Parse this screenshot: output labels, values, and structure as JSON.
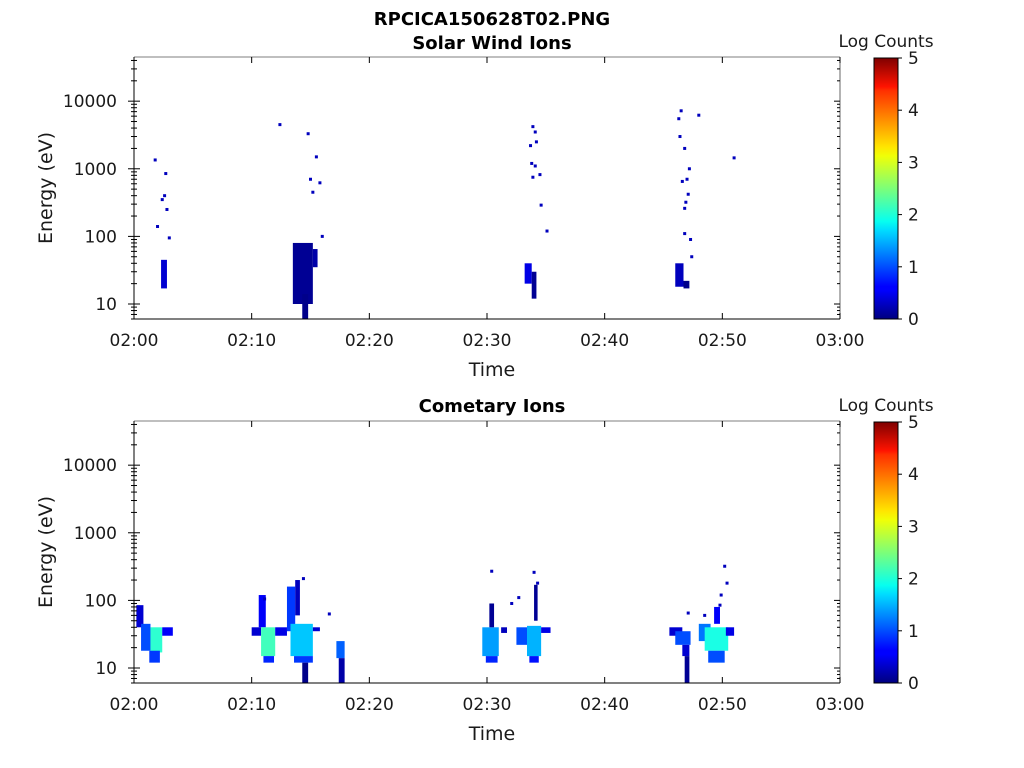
{
  "figure": {
    "title": "RPCICA150628T02.PNG"
  },
  "colors": {
    "colormap": "jet",
    "axis": "#000000",
    "background": "#ffffff"
  },
  "chart_data": [
    {
      "type": "heatmap",
      "title": "Solar Wind Ions",
      "xlabel": "Time",
      "ylabel": "Energy (eV)",
      "yscale": "log",
      "xlim": [
        "02:00",
        "03:00"
      ],
      "ylim": [
        6,
        45000
      ],
      "x_ticks": [
        "02:00",
        "02:10",
        "02:20",
        "02:30",
        "02:40",
        "02:50",
        "03:00"
      ],
      "y_ticks": [
        "10",
        "100",
        "1000",
        "10000"
      ],
      "colorbar": {
        "label": "Log Counts",
        "range": [
          0,
          5
        ],
        "ticks": [
          "0",
          "1",
          "2",
          "3",
          "4",
          "5"
        ]
      },
      "grid": false,
      "blocks": [
        {
          "t": [
            2.3,
            2.8
          ],
          "e": [
            17,
            45
          ],
          "c": 0.4
        },
        {
          "t": [
            13.5,
            15.2
          ],
          "e": [
            10,
            80
          ],
          "c": 0.1
        },
        {
          "t": [
            14.3,
            14.8
          ],
          "e": [
            6,
            14
          ],
          "c": 0.05
        },
        {
          "t": [
            15.2,
            15.6
          ],
          "e": [
            35,
            65
          ],
          "c": 0.2
        },
        {
          "t": [
            33.2,
            33.8
          ],
          "e": [
            20,
            40
          ],
          "c": 0.5
        },
        {
          "t": [
            33.8,
            34.2
          ],
          "e": [
            12,
            30
          ],
          "c": 0.1
        },
        {
          "t": [
            46.0,
            46.7
          ],
          "e": [
            18,
            40
          ],
          "c": 0.3
        },
        {
          "t": [
            46.7,
            47.2
          ],
          "e": [
            17,
            22
          ],
          "c": 0.05
        }
      ],
      "points": [
        {
          "t": 1.8,
          "e": 1350,
          "c": 0.3
        },
        {
          "t": 2.4,
          "e": 350,
          "c": 0.3
        },
        {
          "t": 2.0,
          "e": 140,
          "c": 0.3
        },
        {
          "t": 2.6,
          "e": 400,
          "c": 0.3
        },
        {
          "t": 2.7,
          "e": 850,
          "c": 0.3
        },
        {
          "t": 2.8,
          "e": 250,
          "c": 0.3
        },
        {
          "t": 3.0,
          "e": 95,
          "c": 0.3
        },
        {
          "t": 12.4,
          "e": 4500,
          "c": 0.3
        },
        {
          "t": 14.8,
          "e": 3300,
          "c": 0.3
        },
        {
          "t": 15.0,
          "e": 700,
          "c": 0.3
        },
        {
          "t": 15.2,
          "e": 450,
          "c": 0.3
        },
        {
          "t": 15.5,
          "e": 1500,
          "c": 0.3
        },
        {
          "t": 15.8,
          "e": 620,
          "c": 0.3
        },
        {
          "t": 16.0,
          "e": 100,
          "c": 0.3
        },
        {
          "t": 33.9,
          "e": 4200,
          "c": 0.3
        },
        {
          "t": 34.1,
          "e": 3500,
          "c": 0.3
        },
        {
          "t": 33.7,
          "e": 2200,
          "c": 0.3
        },
        {
          "t": 34.2,
          "e": 2500,
          "c": 0.3
        },
        {
          "t": 33.8,
          "e": 1200,
          "c": 0.3
        },
        {
          "t": 34.1,
          "e": 1100,
          "c": 0.3
        },
        {
          "t": 33.9,
          "e": 750,
          "c": 0.3
        },
        {
          "t": 34.5,
          "e": 820,
          "c": 0.3
        },
        {
          "t": 34.6,
          "e": 290,
          "c": 0.3
        },
        {
          "t": 35.1,
          "e": 120,
          "c": 0.3
        },
        {
          "t": 46.5,
          "e": 7200,
          "c": 0.3
        },
        {
          "t": 46.3,
          "e": 5500,
          "c": 0.3
        },
        {
          "t": 48.0,
          "e": 6200,
          "c": 0.3
        },
        {
          "t": 46.4,
          "e": 3000,
          "c": 0.3
        },
        {
          "t": 46.8,
          "e": 2000,
          "c": 0.3
        },
        {
          "t": 47.2,
          "e": 1000,
          "c": 0.3
        },
        {
          "t": 46.6,
          "e": 650,
          "c": 0.3
        },
        {
          "t": 47.0,
          "e": 700,
          "c": 0.3
        },
        {
          "t": 47.1,
          "e": 420,
          "c": 0.3
        },
        {
          "t": 46.9,
          "e": 320,
          "c": 0.3
        },
        {
          "t": 46.8,
          "e": 260,
          "c": 0.3
        },
        {
          "t": 46.8,
          "e": 110,
          "c": 0.3
        },
        {
          "t": 47.3,
          "e": 90,
          "c": 0.3
        },
        {
          "t": 47.4,
          "e": 50,
          "c": 0.3
        },
        {
          "t": 51.0,
          "e": 1450,
          "c": 0.3
        }
      ]
    },
    {
      "type": "heatmap",
      "title": "Cometary Ions",
      "xlabel": "Time",
      "ylabel": "Energy (eV)",
      "yscale": "log",
      "xlim": [
        "02:00",
        "03:00"
      ],
      "ylim": [
        6,
        45000
      ],
      "x_ticks": [
        "02:00",
        "02:10",
        "02:20",
        "02:30",
        "02:40",
        "02:50",
        "03:00"
      ],
      "y_ticks": [
        "10",
        "100",
        "1000",
        "10000"
      ],
      "colorbar": {
        "label": "Log Counts",
        "range": [
          0,
          5
        ],
        "ticks": [
          "0",
          "1",
          "2",
          "3",
          "4",
          "5"
        ]
      },
      "grid": false,
      "blocks": [
        {
          "t": [
            0.2,
            0.8
          ],
          "e": [
            40,
            85
          ],
          "c": 0.4
        },
        {
          "t": [
            0.6,
            1.4
          ],
          "e": [
            18,
            45
          ],
          "c": 1.0
        },
        {
          "t": [
            1.4,
            2.4
          ],
          "e": [
            17,
            40
          ],
          "c": 2.1
        },
        {
          "t": [
            1.3,
            2.2
          ],
          "e": [
            12,
            18
          ],
          "c": 0.9
        },
        {
          "t": [
            2.4,
            3.3
          ],
          "e": [
            30,
            40
          ],
          "c": 0.6
        },
        {
          "t": [
            10.0,
            10.8
          ],
          "e": [
            30,
            40
          ],
          "c": 0.4
        },
        {
          "t": [
            10.6,
            11.2
          ],
          "e": [
            40,
            120
          ],
          "c": 0.6
        },
        {
          "t": [
            10.8,
            12.0
          ],
          "e": [
            15,
            40
          ],
          "c": 2.2
        },
        {
          "t": [
            11.0,
            11.9
          ],
          "e": [
            12,
            15
          ],
          "c": 0.8
        },
        {
          "t": [
            12.0,
            13.0
          ],
          "e": [
            30,
            40
          ],
          "c": 0.5
        },
        {
          "t": [
            13.0,
            13.7
          ],
          "e": [
            35,
            160
          ],
          "c": 0.9
        },
        {
          "t": [
            13.7,
            14.1
          ],
          "e": [
            60,
            200
          ],
          "c": 0.3
        },
        {
          "t": [
            13.3,
            15.2
          ],
          "e": [
            15,
            45
          ],
          "c": 1.6
        },
        {
          "t": [
            13.6,
            15.2
          ],
          "e": [
            12,
            15
          ],
          "c": 0.9
        },
        {
          "t": [
            14.3,
            14.8
          ],
          "e": [
            6,
            12
          ],
          "c": 0.05
        },
        {
          "t": [
            15.2,
            15.8
          ],
          "e": [
            35,
            40
          ],
          "c": 0.4
        },
        {
          "t": [
            17.2,
            17.9
          ],
          "e": [
            14,
            25
          ],
          "c": 1.1
        },
        {
          "t": [
            17.4,
            17.9
          ],
          "e": [
            6,
            14
          ],
          "c": 0.2
        },
        {
          "t": [
            29.6,
            31.0
          ],
          "e": [
            15,
            40
          ],
          "c": 1.4
        },
        {
          "t": [
            29.9,
            30.9
          ],
          "e": [
            12,
            15
          ],
          "c": 0.8
        },
        {
          "t": [
            30.2,
            30.6
          ],
          "e": [
            40,
            90
          ],
          "c": 0.1
        },
        {
          "t": [
            31.2,
            31.7
          ],
          "e": [
            33,
            40
          ],
          "c": 0.3
        },
        {
          "t": [
            32.5,
            33.4
          ],
          "e": [
            22,
            40
          ],
          "c": 1.0
        },
        {
          "t": [
            33.4,
            34.6
          ],
          "e": [
            15,
            42
          ],
          "c": 1.5
        },
        {
          "t": [
            33.6,
            34.4
          ],
          "e": [
            12,
            15
          ],
          "c": 0.7
        },
        {
          "t": [
            34.0,
            34.3
          ],
          "e": [
            50,
            170
          ],
          "c": 0.1
        },
        {
          "t": [
            34.6,
            35.4
          ],
          "e": [
            33,
            40
          ],
          "c": 0.5
        },
        {
          "t": [
            45.5,
            46.6
          ],
          "e": [
            30,
            40
          ],
          "c": 0.4
        },
        {
          "t": [
            46.0,
            47.3
          ],
          "e": [
            22,
            35
          ],
          "c": 1.0
        },
        {
          "t": [
            46.6,
            47.2
          ],
          "e": [
            15,
            22
          ],
          "c": 0.4
        },
        {
          "t": [
            46.8,
            47.2
          ],
          "e": [
            6,
            15
          ],
          "c": 0.1
        },
        {
          "t": [
            48.0,
            49.0
          ],
          "e": [
            25,
            45
          ],
          "c": 1.2
        },
        {
          "t": [
            48.5,
            50.5
          ],
          "e": [
            18,
            40
          ],
          "c": 2.0
        },
        {
          "t": [
            48.8,
            50.2
          ],
          "e": [
            12,
            18
          ],
          "c": 1.0
        },
        {
          "t": [
            49.3,
            49.8
          ],
          "e": [
            45,
            80
          ],
          "c": 0.6
        },
        {
          "t": [
            50.3,
            51.0
          ],
          "e": [
            30,
            40
          ],
          "c": 0.5
        }
      ],
      "points": [
        {
          "t": 30.4,
          "e": 270,
          "c": 0.3
        },
        {
          "t": 32.1,
          "e": 90,
          "c": 0.3
        },
        {
          "t": 34.0,
          "e": 260,
          "c": 0.3
        },
        {
          "t": 34.3,
          "e": 180,
          "c": 0.3
        },
        {
          "t": 32.7,
          "e": 110,
          "c": 0.3
        },
        {
          "t": 50.2,
          "e": 320,
          "c": 0.3
        },
        {
          "t": 50.4,
          "e": 180,
          "c": 0.3
        },
        {
          "t": 49.9,
          "e": 120,
          "c": 0.3
        },
        {
          "t": 47.1,
          "e": 65,
          "c": 0.3
        },
        {
          "t": 48.5,
          "e": 60,
          "c": 0.3
        },
        {
          "t": 49.8,
          "e": 85,
          "c": 0.3
        },
        {
          "t": 16.6,
          "e": 63,
          "c": 0.3
        },
        {
          "t": 11.1,
          "e": 105,
          "c": 0.3
        },
        {
          "t": 14.4,
          "e": 210,
          "c": 0.3
        }
      ]
    }
  ]
}
